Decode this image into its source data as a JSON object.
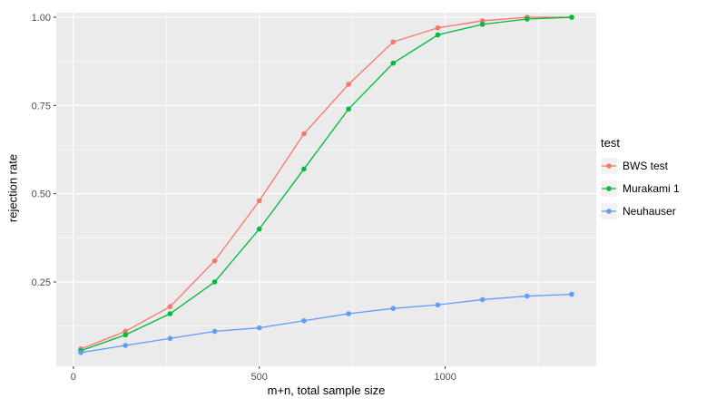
{
  "chart_data": {
    "type": "line",
    "title": "",
    "xlabel": "m+n, total sample size",
    "ylabel": "rejection rate",
    "legend_title": "test",
    "legend_position": "right",
    "grid": true,
    "panel_bg": "#EBEBEB",
    "grid_color": "#FFFFFF",
    "tick_color": "#333333",
    "tick_label_color": "#4D4D4D",
    "x": [
      20,
      140,
      260,
      380,
      500,
      620,
      740,
      860,
      980,
      1100,
      1220,
      1340
    ],
    "series": [
      {
        "name": "BWS test",
        "color": "#F8766D",
        "values": [
          0.06,
          0.11,
          0.18,
          0.31,
          0.48,
          0.67,
          0.81,
          0.93,
          0.97,
          0.99,
          1.0,
          1.0
        ]
      },
      {
        "name": "Murakami 1",
        "color": "#00BA38",
        "values": [
          0.055,
          0.1,
          0.16,
          0.25,
          0.4,
          0.57,
          0.74,
          0.87,
          0.95,
          0.98,
          0.995,
          1.0
        ]
      },
      {
        "name": "Neuhauser",
        "color": "#619CFF",
        "values": [
          0.05,
          0.07,
          0.09,
          0.11,
          0.12,
          0.14,
          0.16,
          0.175,
          0.185,
          0.2,
          0.21,
          0.215
        ]
      }
    ],
    "xticks": [
      0,
      500,
      1000
    ],
    "xtick_labels": [
      "0",
      "500",
      "1000"
    ],
    "yticks": [
      0.25,
      0.5,
      0.75,
      1.0
    ],
    "ytick_labels": [
      "0.25",
      "0.50",
      "0.75",
      "1.00"
    ],
    "x_minor": [
      250,
      750,
      1250
    ],
    "y_minor": [
      0.125,
      0.375,
      0.625,
      0.875
    ],
    "xlim": [
      -46,
      1406
    ],
    "ylim": [
      0.011,
      1.013
    ]
  }
}
